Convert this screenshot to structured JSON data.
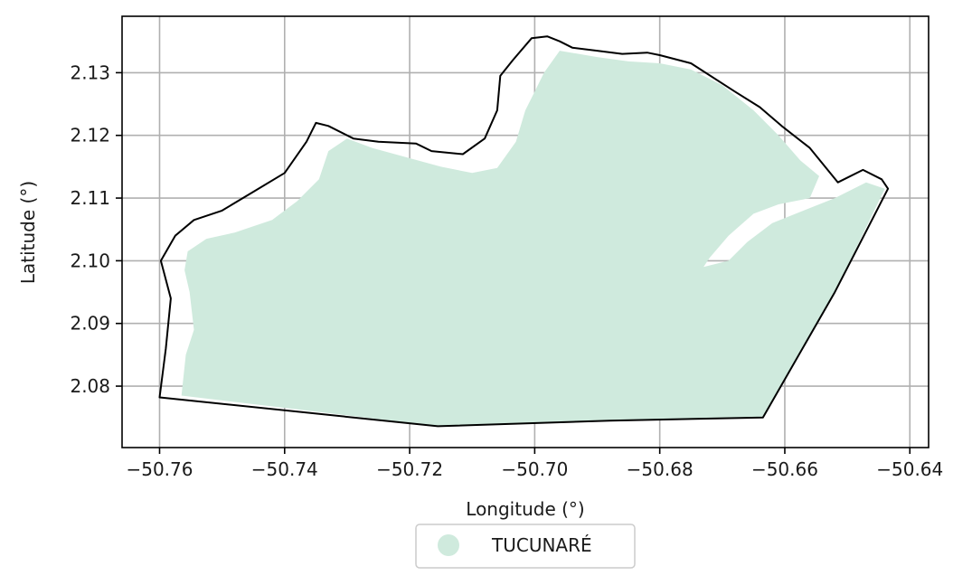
{
  "chart_data": {
    "type": "map",
    "title": "",
    "xlabel": "Longitude (°)",
    "ylabel": "Latitude (°)",
    "xlim": [
      -50.766,
      -50.637
    ],
    "ylim": [
      2.0702,
      2.139
    ],
    "x_ticks": [
      -50.76,
      -50.74,
      -50.72,
      -50.7,
      -50.68,
      -50.66,
      -50.64
    ],
    "y_ticks": [
      2.08,
      2.09,
      2.1,
      2.11,
      2.12,
      2.13
    ],
    "x_tick_labels": [
      "−50.76",
      "−50.74",
      "−50.72",
      "−50.70",
      "−50.68",
      "−50.66",
      "−50.64"
    ],
    "y_tick_labels": [
      "2.08",
      "2.09",
      "2.10",
      "2.11",
      "2.12",
      "2.13"
    ],
    "grid": true,
    "legend_position": "below",
    "legend": [
      {
        "label": "TUCUNARÉ",
        "color": "#cfeadd",
        "marker": "circle"
      }
    ],
    "area_fill_color": "#cfeadd",
    "boundary_color": "#000000",
    "boundary": [
      [
        -50.76,
        2.0782
      ],
      [
        -50.759,
        2.086
      ],
      [
        -50.7582,
        2.094
      ],
      [
        -50.7598,
        2.1
      ],
      [
        -50.7575,
        2.104
      ],
      [
        -50.7545,
        2.1065
      ],
      [
        -50.75,
        2.108
      ],
      [
        -50.745,
        2.111
      ],
      [
        -50.74,
        2.114
      ],
      [
        -50.7365,
        2.119
      ],
      [
        -50.735,
        2.122
      ],
      [
        -50.733,
        2.1215
      ],
      [
        -50.729,
        2.1195
      ],
      [
        -50.725,
        2.119
      ],
      [
        -50.719,
        2.1187
      ],
      [
        -50.7165,
        2.1175
      ],
      [
        -50.7115,
        2.117
      ],
      [
        -50.708,
        2.1195
      ],
      [
        -50.706,
        2.124
      ],
      [
        -50.7055,
        2.1295
      ],
      [
        -50.7035,
        2.132
      ],
      [
        -50.7005,
        2.1355
      ],
      [
        -50.698,
        2.1358
      ],
      [
        -50.696,
        2.135
      ],
      [
        -50.694,
        2.134
      ],
      [
        -50.69,
        2.1335
      ],
      [
        -50.686,
        2.133
      ],
      [
        -50.682,
        2.1332
      ],
      [
        -50.68,
        2.1328
      ],
      [
        -50.675,
        2.1315
      ],
      [
        -50.668,
        2.127
      ],
      [
        -50.664,
        2.1245
      ],
      [
        -50.6605,
        2.1215
      ],
      [
        -50.656,
        2.118
      ],
      [
        -50.6515,
        2.1125
      ],
      [
        -50.6475,
        2.1145
      ],
      [
        -50.6445,
        2.113
      ],
      [
        -50.6435,
        2.1115
      ],
      [
        -50.652,
        2.095
      ],
      [
        -50.6635,
        2.075
      ],
      [
        -50.688,
        2.0745
      ],
      [
        -50.7155,
        2.0736
      ],
      [
        -50.76,
        2.0782
      ]
    ],
    "area": [
      [
        -50.7565,
        2.0785
      ],
      [
        -50.7558,
        2.085
      ],
      [
        -50.7545,
        2.089
      ],
      [
        -50.7552,
        2.095
      ],
      [
        -50.756,
        2.0985
      ],
      [
        -50.7555,
        2.1015
      ],
      [
        -50.7525,
        2.1035
      ],
      [
        -50.748,
        2.1045
      ],
      [
        -50.742,
        2.1065
      ],
      [
        -50.738,
        2.1095
      ],
      [
        -50.7345,
        2.113
      ],
      [
        -50.733,
        2.1175
      ],
      [
        -50.73,
        2.1195
      ],
      [
        -50.726,
        2.118
      ],
      [
        -50.7205,
        2.1165
      ],
      [
        -50.715,
        2.115
      ],
      [
        -50.71,
        2.114
      ],
      [
        -50.706,
        2.1148
      ],
      [
        -50.703,
        2.119
      ],
      [
        -50.7015,
        2.124
      ],
      [
        -50.7,
        2.127
      ],
      [
        -50.6985,
        2.13
      ],
      [
        -50.696,
        2.1335
      ],
      [
        -50.69,
        2.1325
      ],
      [
        -50.685,
        2.1318
      ],
      [
        -50.68,
        2.1315
      ],
      [
        -50.675,
        2.1305
      ],
      [
        -50.67,
        2.128
      ],
      [
        -50.665,
        2.124
      ],
      [
        -50.661,
        2.12
      ],
      [
        -50.6575,
        2.116
      ],
      [
        -50.6545,
        2.1135
      ],
      [
        -50.656,
        2.11
      ],
      [
        -50.661,
        2.109
      ],
      [
        -50.665,
        2.1075
      ],
      [
        -50.669,
        2.104
      ],
      [
        -50.672,
        2.1005
      ],
      [
        -50.673,
        2.099
      ],
      [
        -50.669,
        2.1
      ],
      [
        -50.666,
        2.103
      ],
      [
        -50.662,
        2.106
      ],
      [
        -50.657,
        2.108
      ],
      [
        -50.652,
        2.11
      ],
      [
        -50.647,
        2.1125
      ],
      [
        -50.644,
        2.1115
      ],
      [
        -50.652,
        2.095
      ],
      [
        -50.6635,
        2.075
      ],
      [
        -50.688,
        2.0745
      ],
      [
        -50.7155,
        2.0736
      ],
      [
        -50.7565,
        2.0785
      ]
    ]
  }
}
